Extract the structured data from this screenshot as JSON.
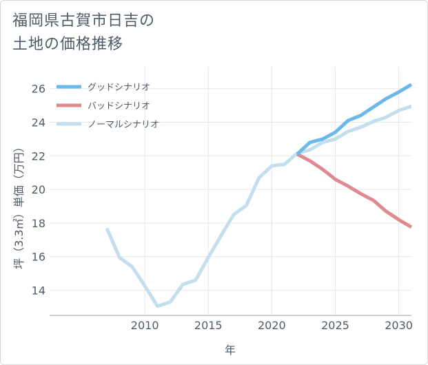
{
  "title_line1": "福岡県古賀市日吉の",
  "title_line2": "土地の価格推移",
  "chart_data": {
    "type": "line",
    "xlabel": "年",
    "ylabel": "坪（3.3㎡）単価（万円）",
    "xlim": [
      2002.5,
      2031
    ],
    "ylim": [
      12.5,
      27.3
    ],
    "xticks": [
      2010,
      2015,
      2020,
      2025,
      2030
    ],
    "yticks": [
      14,
      16,
      18,
      20,
      22,
      24,
      26
    ],
    "grid": true,
    "legend_position": "top-left",
    "series": [
      {
        "name": "グッドシナリオ",
        "color": "#6bb8ea",
        "x": [
          2022,
          2023,
          2024,
          2025,
          2026,
          2027,
          2028,
          2029,
          2030,
          2031
        ],
        "values": [
          22.1,
          22.8,
          23.0,
          23.4,
          24.1,
          24.4,
          24.9,
          25.4,
          25.8,
          26.25
        ]
      },
      {
        "name": "バッドシナリオ",
        "color": "#df8a92",
        "x": [
          2022,
          2023,
          2024,
          2025,
          2026,
          2027,
          2028,
          2029,
          2030,
          2031
        ],
        "values": [
          22.1,
          21.7,
          21.2,
          20.6,
          20.2,
          19.75,
          19.35,
          18.7,
          18.2,
          17.75
        ]
      },
      {
        "name": "ノーマルシナリオ",
        "color": "#c3dfee",
        "x": [
          2007,
          2008,
          2009,
          2010,
          2011,
          2012,
          2013,
          2014,
          2015,
          2016,
          2017,
          2018,
          2019,
          2020,
          2021,
          2022,
          2023,
          2024,
          2025,
          2026,
          2027,
          2028,
          2029,
          2030,
          2031
        ],
        "values": [
          17.7,
          15.95,
          15.4,
          14.25,
          13.05,
          13.3,
          14.35,
          14.6,
          15.95,
          17.25,
          18.5,
          19.05,
          20.7,
          21.4,
          21.5,
          22.15,
          22.35,
          22.8,
          23.0,
          23.45,
          23.7,
          24.05,
          24.3,
          24.7,
          24.95
        ]
      }
    ]
  }
}
